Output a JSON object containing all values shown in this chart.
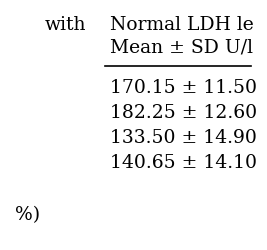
{
  "col1_header": "with",
  "col2_header": "Normal LDH le",
  "col2_subheader": "Mean ± SD U/l",
  "rows": [
    "170.15 ± 11.50",
    "182.25 ± 12.60",
    "133.50 ± 14.90",
    "140.65 ± 14.10"
  ],
  "footer": "%)",
  "bg_color": "#ffffff",
  "text_color": "#000000",
  "font_size": 13.5
}
